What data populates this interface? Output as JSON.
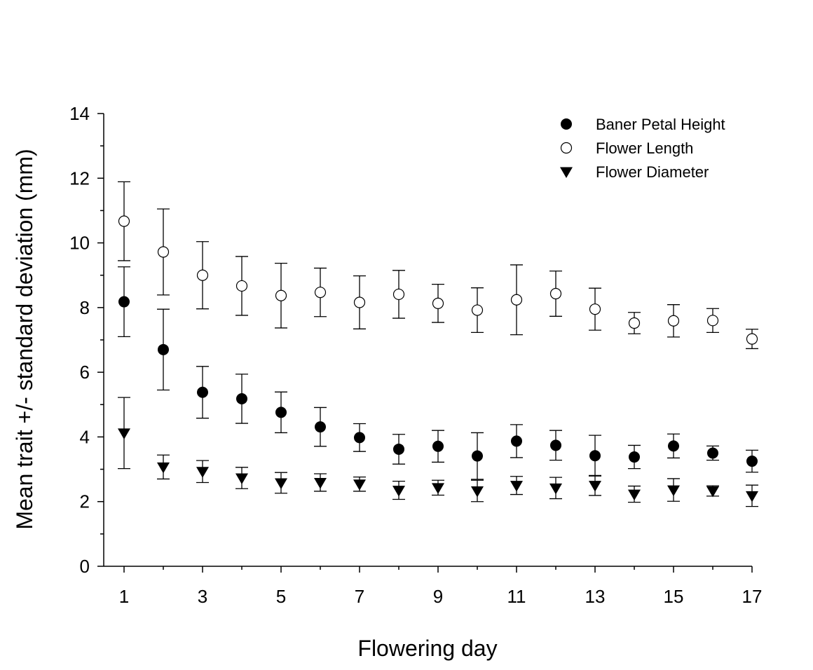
{
  "chart_data": {
    "type": "scatter",
    "title": "",
    "xlabel": "Flowering day",
    "ylabel": "Mean trait +/- standard deviation (mm)",
    "xlim": [
      1,
      17
    ],
    "ylim": [
      0,
      14
    ],
    "x_ticks": [
      1,
      3,
      5,
      7,
      9,
      11,
      13,
      15,
      17
    ],
    "y_ticks": [
      0,
      2,
      4,
      6,
      8,
      10,
      12,
      14
    ],
    "grid": false,
    "legend_position": "top-right",
    "x": [
      1,
      2,
      3,
      4,
      5,
      6,
      7,
      8,
      9,
      10,
      11,
      12,
      13,
      14,
      15,
      16,
      17
    ],
    "series": [
      {
        "name": "Baner Petal Height",
        "marker": "filled-circle",
        "values": [
          8.18,
          6.7,
          5.38,
          5.18,
          4.76,
          4.31,
          3.98,
          3.62,
          3.71,
          3.41,
          3.87,
          3.74,
          3.42,
          3.38,
          3.72,
          3.5,
          3.25
        ],
        "sd": [
          1.08,
          1.25,
          0.8,
          0.76,
          0.63,
          0.6,
          0.43,
          0.46,
          0.49,
          0.72,
          0.51,
          0.46,
          0.63,
          0.36,
          0.37,
          0.22,
          0.34
        ]
      },
      {
        "name": "Flower Length",
        "marker": "open-circle",
        "values": [
          10.67,
          9.72,
          9.0,
          8.67,
          8.37,
          8.47,
          8.16,
          8.41,
          8.13,
          7.92,
          8.24,
          8.43,
          7.95,
          7.52,
          7.59,
          7.6,
          7.03
        ],
        "sd": [
          1.22,
          1.33,
          1.04,
          0.91,
          1.0,
          0.75,
          0.82,
          0.74,
          0.59,
          0.69,
          1.08,
          0.7,
          0.65,
          0.33,
          0.5,
          0.37,
          0.3
        ]
      },
      {
        "name": "Flower Diameter",
        "marker": "filled-triangle-down",
        "values": [
          4.12,
          3.07,
          2.93,
          2.73,
          2.58,
          2.59,
          2.54,
          2.35,
          2.43,
          2.33,
          2.5,
          2.42,
          2.5,
          2.23,
          2.36,
          2.33,
          2.18
        ],
        "sd": [
          1.1,
          0.37,
          0.34,
          0.33,
          0.32,
          0.27,
          0.22,
          0.28,
          0.23,
          0.33,
          0.28,
          0.33,
          0.31,
          0.25,
          0.35,
          0.16,
          0.33
        ]
      }
    ]
  }
}
